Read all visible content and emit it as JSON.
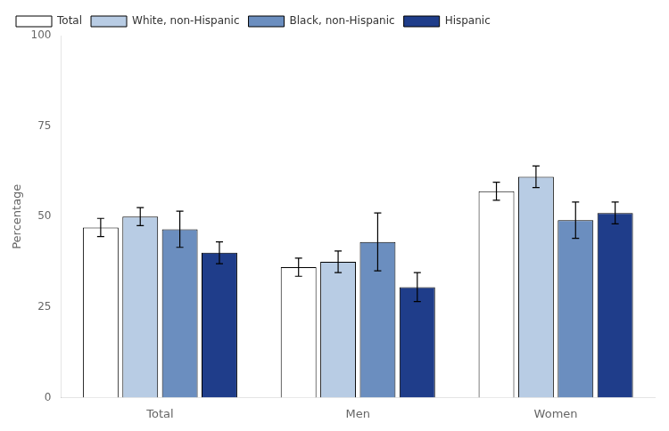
{
  "chart_data": {
    "type": "bar",
    "categories": [
      "Total",
      "Men",
      "Women"
    ],
    "series": [
      {
        "name": "Total",
        "color": "#ffffff",
        "values": [
          47,
          36,
          57
        ],
        "errors": [
          2.5,
          2.5,
          2.5
        ]
      },
      {
        "name": "White, non-Hispanic",
        "color": "#b8cce4",
        "values": [
          50,
          37.5,
          61
        ],
        "errors": [
          2.5,
          3,
          3
        ]
      },
      {
        "name": "Black, non-Hispanic",
        "color": "#6b8ebf",
        "values": [
          46.5,
          43,
          49
        ],
        "errors": [
          5,
          8,
          5
        ]
      },
      {
        "name": "Hispanic",
        "color": "#1f3d8a",
        "values": [
          40,
          30.5,
          51
        ],
        "errors": [
          3,
          4,
          3
        ]
      }
    ],
    "ylabel": "Percentage",
    "ylim": [
      0,
      100
    ],
    "yticks": [
      0,
      25,
      50,
      75,
      100
    ],
    "grid": false,
    "legend": "upper left"
  }
}
